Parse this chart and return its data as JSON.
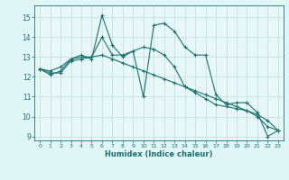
{
  "xlabel": "Humidex (Indice chaleur)",
  "ylabel": "",
  "xlim": [
    -0.5,
    23.5
  ],
  "ylim": [
    8.8,
    15.6
  ],
  "yticks": [
    9,
    10,
    11,
    12,
    13,
    14,
    15
  ],
  "xticks": [
    0,
    1,
    2,
    3,
    4,
    5,
    6,
    7,
    8,
    9,
    10,
    11,
    12,
    13,
    14,
    15,
    16,
    17,
    18,
    19,
    20,
    21,
    22,
    23
  ],
  "bg_color": "#e0f5f5",
  "grid_color": "#c8dede",
  "plot_bg": "#e8f8f8",
  "line_color": "#1a7070",
  "lines": [
    [
      12.4,
      12.1,
      12.3,
      12.9,
      13.1,
      12.9,
      15.1,
      13.6,
      13.0,
      13.3,
      11.0,
      14.6,
      14.7,
      14.3,
      13.5,
      13.1,
      13.1,
      11.1,
      10.6,
      10.7,
      10.7,
      10.2,
      9.0,
      9.3
    ],
    [
      12.4,
      12.3,
      12.5,
      12.9,
      13.0,
      13.0,
      14.0,
      13.1,
      13.1,
      13.3,
      13.5,
      13.4,
      13.1,
      12.5,
      11.5,
      11.2,
      10.9,
      10.6,
      10.5,
      10.4,
      10.3,
      10.0,
      9.5,
      9.3
    ],
    [
      12.4,
      12.2,
      12.2,
      12.8,
      12.9,
      13.0,
      13.1,
      12.9,
      12.7,
      12.5,
      12.3,
      12.1,
      11.9,
      11.7,
      11.5,
      11.3,
      11.1,
      10.9,
      10.7,
      10.5,
      10.3,
      10.1,
      9.8,
      9.3
    ]
  ]
}
